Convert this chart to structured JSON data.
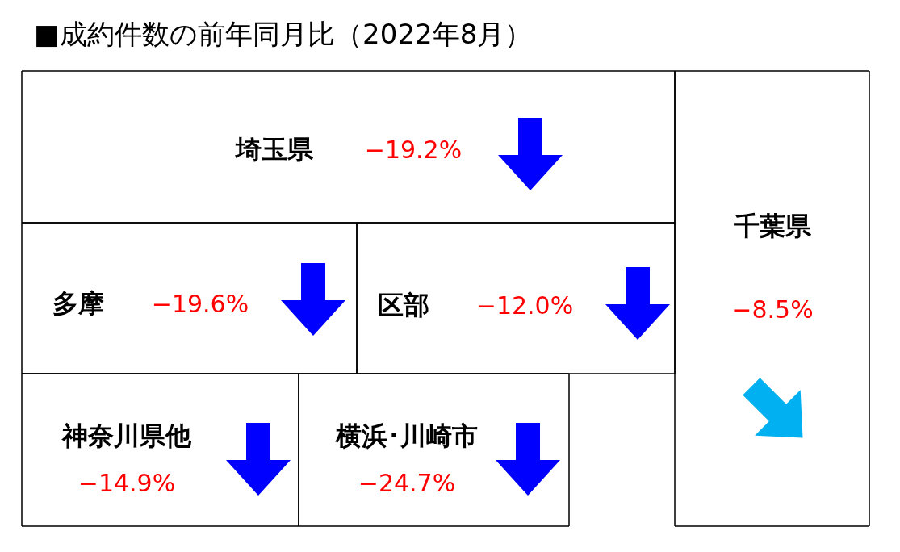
{
  "chart_data": {
    "type": "other",
    "title": "■成約件数の前年同月比（2022年8月）",
    "categories": [
      "埼玉県",
      "千葉県",
      "多摩",
      "区部",
      "神奈川県他",
      "横浜･川崎市"
    ],
    "values": [
      -19.2,
      -8.5,
      -19.6,
      -12.0,
      -14.9,
      -24.7
    ],
    "value_labels": [
      "−19.2%",
      "−8.5%",
      "−19.6%",
      "−12.0%",
      "−14.9%",
      "−24.7%"
    ],
    "colors": [
      "#0000ff",
      "#00b0f0",
      "#0000ff",
      "#0000ff",
      "#0000ff",
      "#0000ff"
    ]
  }
}
